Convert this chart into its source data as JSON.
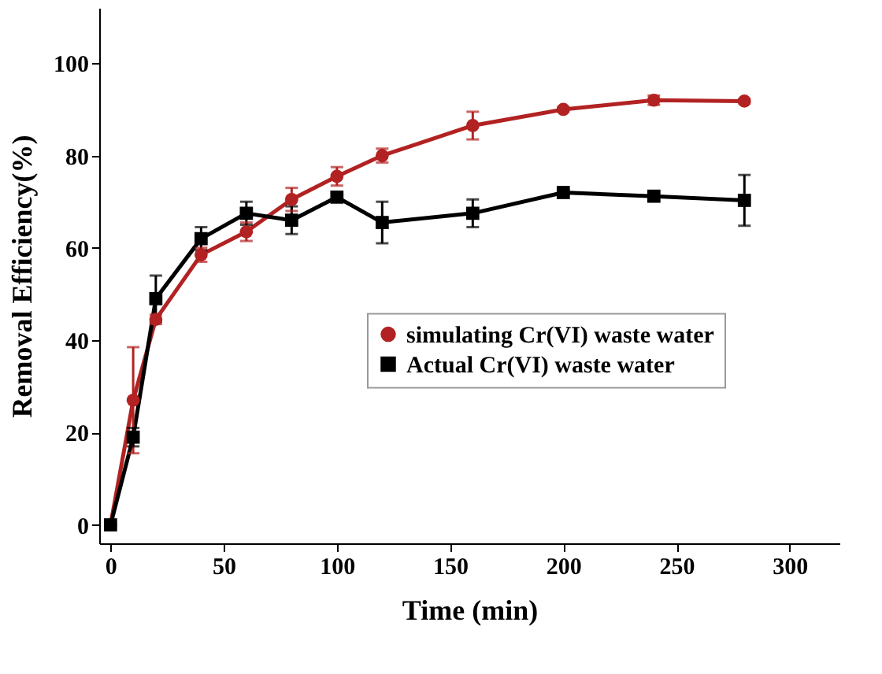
{
  "chart_data": {
    "type": "line",
    "xlabel": "Time (min)",
    "ylabel": "Removal  Efficiency(%)",
    "xlim": [
      -5,
      322
    ],
    "xticks": [
      0,
      50,
      100,
      150,
      200,
      250,
      300
    ],
    "ylim": [
      -4,
      112
    ],
    "yticks": [
      0,
      20,
      40,
      60,
      80,
      100
    ],
    "x": [
      0,
      10,
      20,
      40,
      60,
      80,
      100,
      120,
      160,
      200,
      240,
      280
    ],
    "series": [
      {
        "name": "simulating Cr(VI) waste water",
        "color": "#b22222",
        "marker": "circle",
        "values": [
          0,
          27,
          44.5,
          58.5,
          63.5,
          70.5,
          75.5,
          80,
          86.5,
          90,
          92,
          91.8
        ],
        "errors": [
          null,
          11.5,
          1,
          1.5,
          2,
          2.5,
          2,
          1.5,
          3,
          0.5,
          1,
          0.5
        ]
      },
      {
        "name": "Actual Cr(VI) waste water",
        "color": "#000000",
        "marker": "square",
        "values": [
          0,
          19,
          49,
          62,
          67.5,
          66,
          71,
          65.5,
          67.5,
          72,
          71.2,
          70.3
        ],
        "errors": [
          null,
          2,
          5,
          2.5,
          2.5,
          3,
          1,
          4.5,
          3,
          0.5,
          1,
          5.5
        ]
      }
    ],
    "legend": "right",
    "grid": false,
    "line_style": "solid"
  }
}
